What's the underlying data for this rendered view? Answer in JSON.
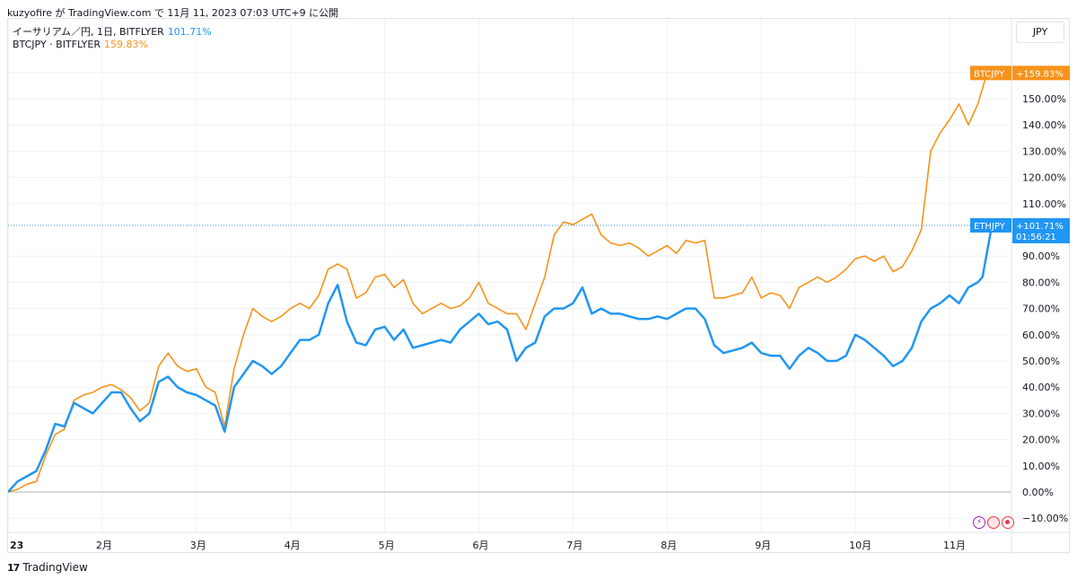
{
  "caption": "kuzyofire が TradingView.com で 11月 11, 2023 07:03 UTC+9 に公開",
  "legend": {
    "main_label": "イーサリアム／円, 1日, BITFLYER",
    "main_value": "101.71%",
    "compare_label": "BTCJPY · BITFLYER",
    "compare_value": "159.83%"
  },
  "currency": "JPY",
  "footer": {
    "logo_mark": "17",
    "logo_text": "TradingView"
  },
  "icons": [
    "bolt-icon",
    "record-icon",
    "record-icon"
  ],
  "colors": {
    "eth": "#2196f3",
    "btc": "#f7931a",
    "grid": "#eef1f6",
    "zero": "#b2b5be"
  },
  "chart_data": {
    "type": "line",
    "y_unit": "%",
    "ylim": [
      -15,
      170
    ],
    "x_range": [
      0,
      10.63
    ],
    "y_ticks": [
      -10,
      0,
      10,
      20,
      30,
      40,
      50,
      60,
      70,
      80,
      90,
      110,
      120,
      130,
      140,
      150,
      160
    ],
    "y_tick_labels": [
      "−10.00%",
      "0.00%",
      "10.00%",
      "20.00%",
      "30.00%",
      "40.00%",
      "50.00%",
      "60.00%",
      "70.00%",
      "80.00%",
      "90.00%",
      "110.00%",
      "120.00%",
      "130.00%",
      "140.00%",
      "150.00%",
      "160.00%"
    ],
    "x_ticks": [
      0,
      1,
      2,
      3,
      4,
      5,
      6,
      7,
      8,
      9,
      10
    ],
    "x_tick_labels": [
      "23",
      "2月",
      "3月",
      "4月",
      "5月",
      "6月",
      "7月",
      "8月",
      "9月",
      "10月",
      "11月"
    ],
    "series": [
      {
        "name": "BTCJPY",
        "color": "#f7931a",
        "badge": "+159.83%",
        "last": 159.83,
        "points": [
          [
            0,
            0
          ],
          [
            0.1,
            1
          ],
          [
            0.2,
            3
          ],
          [
            0.3,
            4
          ],
          [
            0.4,
            14
          ],
          [
            0.5,
            22
          ],
          [
            0.6,
            24
          ],
          [
            0.7,
            35
          ],
          [
            0.8,
            37
          ],
          [
            0.9,
            38
          ],
          [
            1.0,
            40
          ],
          [
            1.1,
            41
          ],
          [
            1.2,
            39
          ],
          [
            1.3,
            36
          ],
          [
            1.4,
            31
          ],
          [
            1.5,
            34
          ],
          [
            1.6,
            48
          ],
          [
            1.7,
            53
          ],
          [
            1.8,
            48
          ],
          [
            1.9,
            46
          ],
          [
            2.0,
            47
          ],
          [
            2.1,
            40
          ],
          [
            2.2,
            38
          ],
          [
            2.3,
            25
          ],
          [
            2.4,
            47
          ],
          [
            2.5,
            60
          ],
          [
            2.6,
            70
          ],
          [
            2.7,
            67
          ],
          [
            2.8,
            65
          ],
          [
            2.9,
            67
          ],
          [
            3.0,
            70
          ],
          [
            3.1,
            72
          ],
          [
            3.2,
            70
          ],
          [
            3.3,
            75
          ],
          [
            3.4,
            85
          ],
          [
            3.5,
            87
          ],
          [
            3.6,
            85
          ],
          [
            3.7,
            74
          ],
          [
            3.8,
            76
          ],
          [
            3.9,
            82
          ],
          [
            4.0,
            83
          ],
          [
            4.1,
            78
          ],
          [
            4.2,
            81
          ],
          [
            4.3,
            72
          ],
          [
            4.4,
            68
          ],
          [
            4.5,
            70
          ],
          [
            4.6,
            72
          ],
          [
            4.7,
            70
          ],
          [
            4.8,
            71
          ],
          [
            4.9,
            74
          ],
          [
            5.0,
            80
          ],
          [
            5.1,
            72
          ],
          [
            5.2,
            70
          ],
          [
            5.3,
            68
          ],
          [
            5.4,
            68
          ],
          [
            5.5,
            62
          ],
          [
            5.6,
            72
          ],
          [
            5.7,
            82
          ],
          [
            5.8,
            98
          ],
          [
            5.9,
            103
          ],
          [
            6.0,
            102
          ],
          [
            6.1,
            104
          ],
          [
            6.2,
            106
          ],
          [
            6.3,
            98
          ],
          [
            6.4,
            95
          ],
          [
            6.5,
            94
          ],
          [
            6.6,
            95
          ],
          [
            6.7,
            93
          ],
          [
            6.8,
            90
          ],
          [
            6.9,
            92
          ],
          [
            7.0,
            94
          ],
          [
            7.1,
            91
          ],
          [
            7.2,
            96
          ],
          [
            7.3,
            95
          ],
          [
            7.4,
            96
          ],
          [
            7.5,
            74
          ],
          [
            7.6,
            74
          ],
          [
            7.7,
            75
          ],
          [
            7.8,
            76
          ],
          [
            7.9,
            82
          ],
          [
            8.0,
            74
          ],
          [
            8.1,
            76
          ],
          [
            8.2,
            75
          ],
          [
            8.3,
            70
          ],
          [
            8.4,
            78
          ],
          [
            8.5,
            80
          ],
          [
            8.6,
            82
          ],
          [
            8.7,
            80
          ],
          [
            8.8,
            82
          ],
          [
            8.9,
            85
          ],
          [
            9.0,
            89
          ],
          [
            9.1,
            90
          ],
          [
            9.2,
            88
          ],
          [
            9.3,
            90
          ],
          [
            9.4,
            84
          ],
          [
            9.5,
            86
          ],
          [
            9.6,
            92
          ],
          [
            9.7,
            100
          ],
          [
            9.8,
            130
          ],
          [
            9.9,
            137
          ],
          [
            10.0,
            142
          ],
          [
            10.1,
            148
          ],
          [
            10.2,
            140
          ],
          [
            10.3,
            148
          ],
          [
            10.4,
            160
          ],
          [
            10.45,
            159.83
          ]
        ]
      },
      {
        "name": "ETHJPY",
        "color": "#2196f3",
        "badge": "+101.71%",
        "badge_sub": "01:56:21",
        "last": 101.71,
        "points": [
          [
            0,
            0
          ],
          [
            0.1,
            4
          ],
          [
            0.2,
            6
          ],
          [
            0.3,
            8
          ],
          [
            0.4,
            16
          ],
          [
            0.5,
            26
          ],
          [
            0.6,
            25
          ],
          [
            0.7,
            34
          ],
          [
            0.8,
            32
          ],
          [
            0.9,
            30
          ],
          [
            1.0,
            34
          ],
          [
            1.1,
            38
          ],
          [
            1.2,
            38
          ],
          [
            1.3,
            32
          ],
          [
            1.4,
            27
          ],
          [
            1.5,
            30
          ],
          [
            1.6,
            42
          ],
          [
            1.7,
            44
          ],
          [
            1.8,
            40
          ],
          [
            1.9,
            38
          ],
          [
            2.0,
            37
          ],
          [
            2.1,
            35
          ],
          [
            2.2,
            33
          ],
          [
            2.3,
            23
          ],
          [
            2.4,
            40
          ],
          [
            2.5,
            45
          ],
          [
            2.6,
            50
          ],
          [
            2.7,
            48
          ],
          [
            2.8,
            45
          ],
          [
            2.9,
            48
          ],
          [
            3.0,
            53
          ],
          [
            3.1,
            58
          ],
          [
            3.2,
            58
          ],
          [
            3.3,
            60
          ],
          [
            3.4,
            72
          ],
          [
            3.5,
            79
          ],
          [
            3.6,
            65
          ],
          [
            3.7,
            57
          ],
          [
            3.8,
            56
          ],
          [
            3.9,
            62
          ],
          [
            4.0,
            63
          ],
          [
            4.1,
            58
          ],
          [
            4.2,
            62
          ],
          [
            4.3,
            55
          ],
          [
            4.4,
            56
          ],
          [
            4.5,
            57
          ],
          [
            4.6,
            58
          ],
          [
            4.7,
            57
          ],
          [
            4.8,
            62
          ],
          [
            4.9,
            65
          ],
          [
            5.0,
            68
          ],
          [
            5.1,
            64
          ],
          [
            5.2,
            65
          ],
          [
            5.3,
            62
          ],
          [
            5.4,
            50
          ],
          [
            5.5,
            55
          ],
          [
            5.6,
            57
          ],
          [
            5.7,
            67
          ],
          [
            5.8,
            70
          ],
          [
            5.9,
            70
          ],
          [
            6.0,
            72
          ],
          [
            6.1,
            78
          ],
          [
            6.2,
            68
          ],
          [
            6.3,
            70
          ],
          [
            6.4,
            68
          ],
          [
            6.5,
            68
          ],
          [
            6.6,
            67
          ],
          [
            6.7,
            66
          ],
          [
            6.8,
            66
          ],
          [
            6.9,
            67
          ],
          [
            7.0,
            66
          ],
          [
            7.1,
            68
          ],
          [
            7.2,
            70
          ],
          [
            7.3,
            70
          ],
          [
            7.4,
            66
          ],
          [
            7.5,
            56
          ],
          [
            7.6,
            53
          ],
          [
            7.7,
            54
          ],
          [
            7.8,
            55
          ],
          [
            7.9,
            57
          ],
          [
            8.0,
            53
          ],
          [
            8.1,
            52
          ],
          [
            8.2,
            52
          ],
          [
            8.3,
            47
          ],
          [
            8.4,
            52
          ],
          [
            8.5,
            55
          ],
          [
            8.6,
            53
          ],
          [
            8.7,
            50
          ],
          [
            8.8,
            50
          ],
          [
            8.9,
            52
          ],
          [
            9.0,
            60
          ],
          [
            9.1,
            58
          ],
          [
            9.2,
            55
          ],
          [
            9.3,
            52
          ],
          [
            9.4,
            48
          ],
          [
            9.5,
            50
          ],
          [
            9.6,
            55
          ],
          [
            9.7,
            65
          ],
          [
            9.8,
            70
          ],
          [
            9.9,
            72
          ],
          [
            10.0,
            75
          ],
          [
            10.1,
            72
          ],
          [
            10.2,
            78
          ],
          [
            10.3,
            80
          ],
          [
            10.35,
            82
          ],
          [
            10.45,
            101.71
          ]
        ]
      }
    ],
    "price_line": 101.71
  }
}
